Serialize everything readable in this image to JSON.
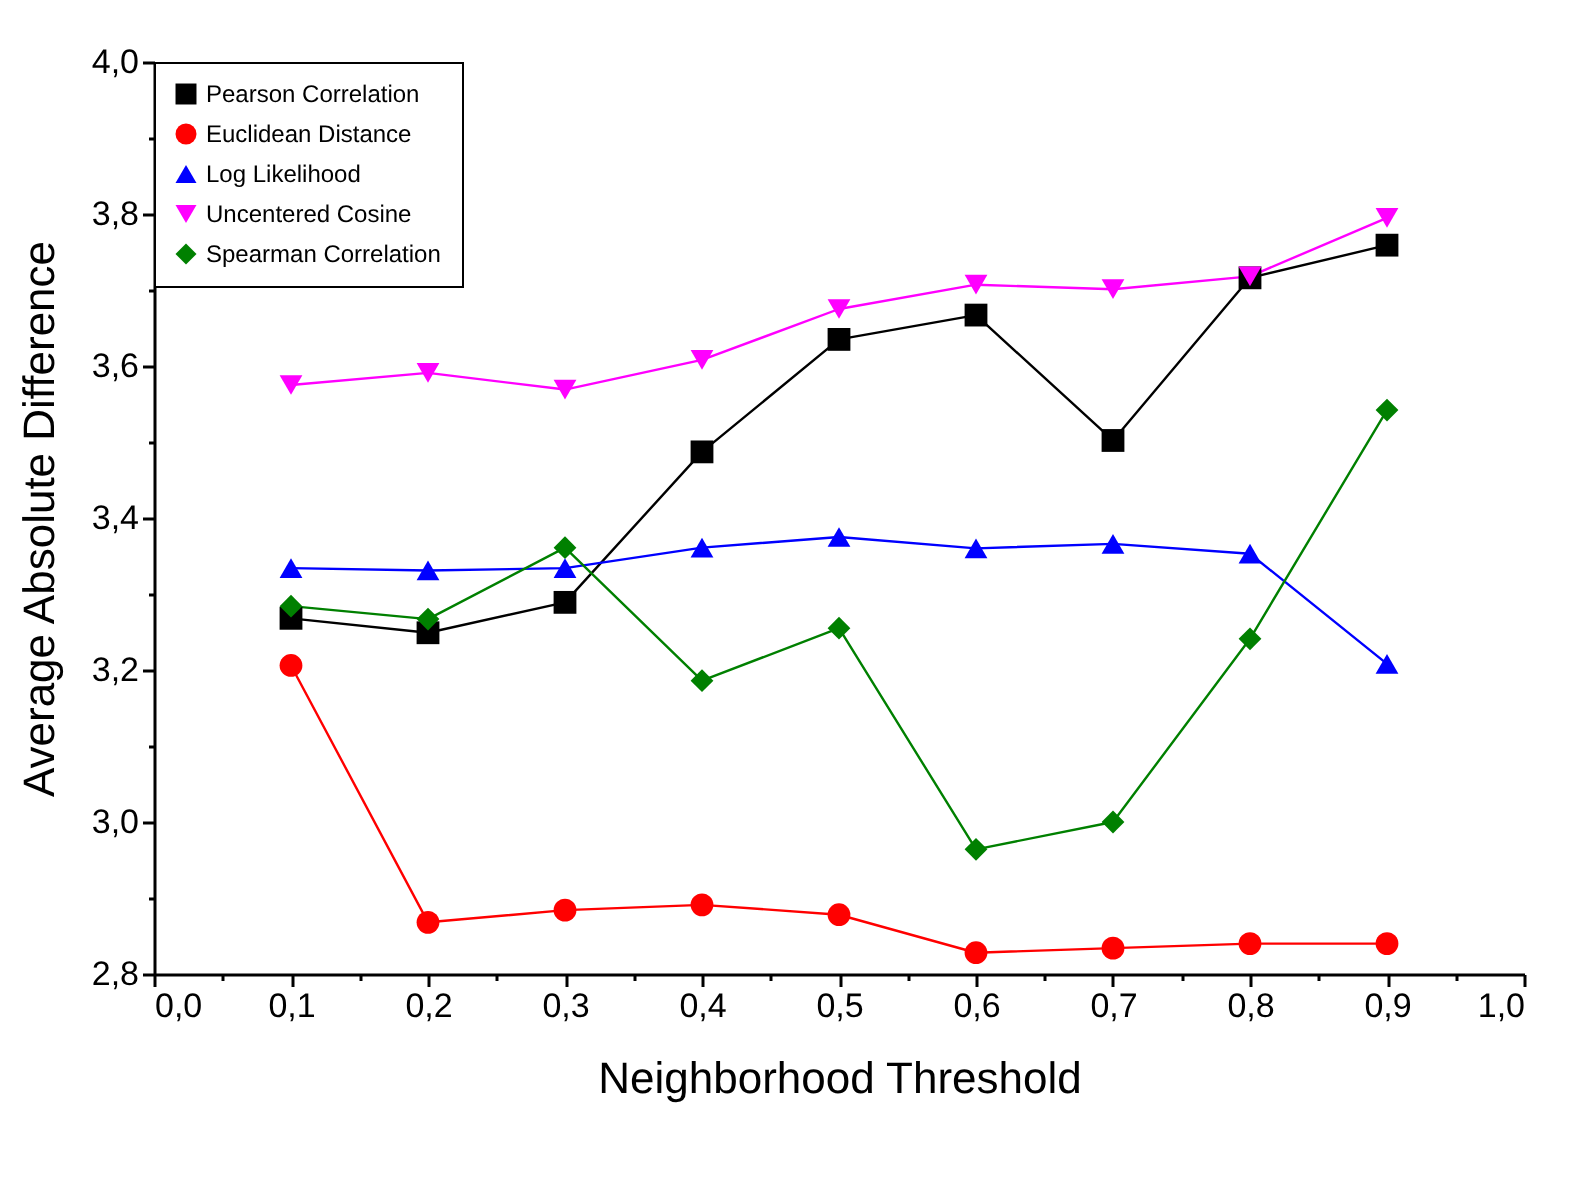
{
  "chart_data": {
    "type": "line",
    "xlabel": "Neighborhood Threshold",
    "ylabel": "Average Absolute Difference",
    "x": [
      0.1,
      0.2,
      0.3,
      0.4,
      0.5,
      0.6,
      0.7,
      0.8,
      0.9
    ],
    "series": [
      {
        "name": "Pearson Correlation",
        "color": "#000000",
        "marker": "square",
        "values": [
          3.268,
          3.249,
          3.289,
          3.487,
          3.635,
          3.667,
          3.502,
          3.716,
          3.759
        ]
      },
      {
        "name": "Euclidean Distance",
        "color": "#ff0000",
        "marker": "circle",
        "values": [
          3.206,
          2.868,
          2.884,
          2.891,
          2.878,
          2.828,
          2.834,
          2.84,
          2.84
        ]
      },
      {
        "name": "Log Likelihood",
        "color": "#0000ff",
        "marker": "triangle",
        "values": [
          3.334,
          3.331,
          3.334,
          3.361,
          3.375,
          3.36,
          3.366,
          3.353,
          3.208
        ]
      },
      {
        "name": "Uncentered Cosine",
        "color": "#ff00ff",
        "marker": "triangle-down",
        "values": [
          3.575,
          3.591,
          3.569,
          3.608,
          3.675,
          3.707,
          3.701,
          3.718,
          3.795
        ]
      },
      {
        "name": "Spearman Correlation",
        "color": "#008000",
        "marker": "diamond",
        "values": [
          3.284,
          3.267,
          3.361,
          3.186,
          3.255,
          2.964,
          3.0,
          3.241,
          3.542
        ]
      }
    ],
    "xlim": [
      0,
      1
    ],
    "ylim": [
      2.8,
      4.0
    ],
    "xticks": [
      {
        "value": 0,
        "label": "0,0"
      },
      {
        "value": 0.05,
        "label": null
      },
      {
        "value": 0.1,
        "label": "0,1"
      },
      {
        "value": 0.15,
        "label": null
      },
      {
        "value": 0.2,
        "label": "0,2"
      },
      {
        "value": 0.25,
        "label": null
      },
      {
        "value": 0.3,
        "label": "0,3"
      },
      {
        "value": 0.35,
        "label": null
      },
      {
        "value": 0.4,
        "label": "0,4"
      },
      {
        "value": 0.45,
        "label": null
      },
      {
        "value": 0.5,
        "label": "0,5"
      },
      {
        "value": 0.55,
        "label": null
      },
      {
        "value": 0.6,
        "label": "0,6"
      },
      {
        "value": 0.65,
        "label": null
      },
      {
        "value": 0.7,
        "label": "0,7"
      },
      {
        "value": 0.75,
        "label": null
      },
      {
        "value": 0.8,
        "label": "0,8"
      },
      {
        "value": 0.85,
        "label": null
      },
      {
        "value": 0.9,
        "label": "0,9"
      },
      {
        "value": 0.95,
        "label": null
      },
      {
        "value": 1,
        "label": "1,0"
      }
    ],
    "yticks": [
      {
        "value": 2.8,
        "label": "2,8"
      },
      {
        "value": 2.9,
        "label": null
      },
      {
        "value": 3.0,
        "label": "3,0"
      },
      {
        "value": 3.1,
        "label": null
      },
      {
        "value": 3.2,
        "label": "3,2"
      },
      {
        "value": 3.3,
        "label": null
      },
      {
        "value": 3.4,
        "label": "3,4"
      },
      {
        "value": 3.5,
        "label": null
      },
      {
        "value": 3.6,
        "label": "3,6"
      },
      {
        "value": 3.7,
        "label": null
      },
      {
        "value": 3.8,
        "label": "3,8"
      },
      {
        "value": 3.9,
        "label": null
      },
      {
        "value": 4.0,
        "label": "4,0"
      }
    ],
    "legend": "top left",
    "grid": false
  }
}
